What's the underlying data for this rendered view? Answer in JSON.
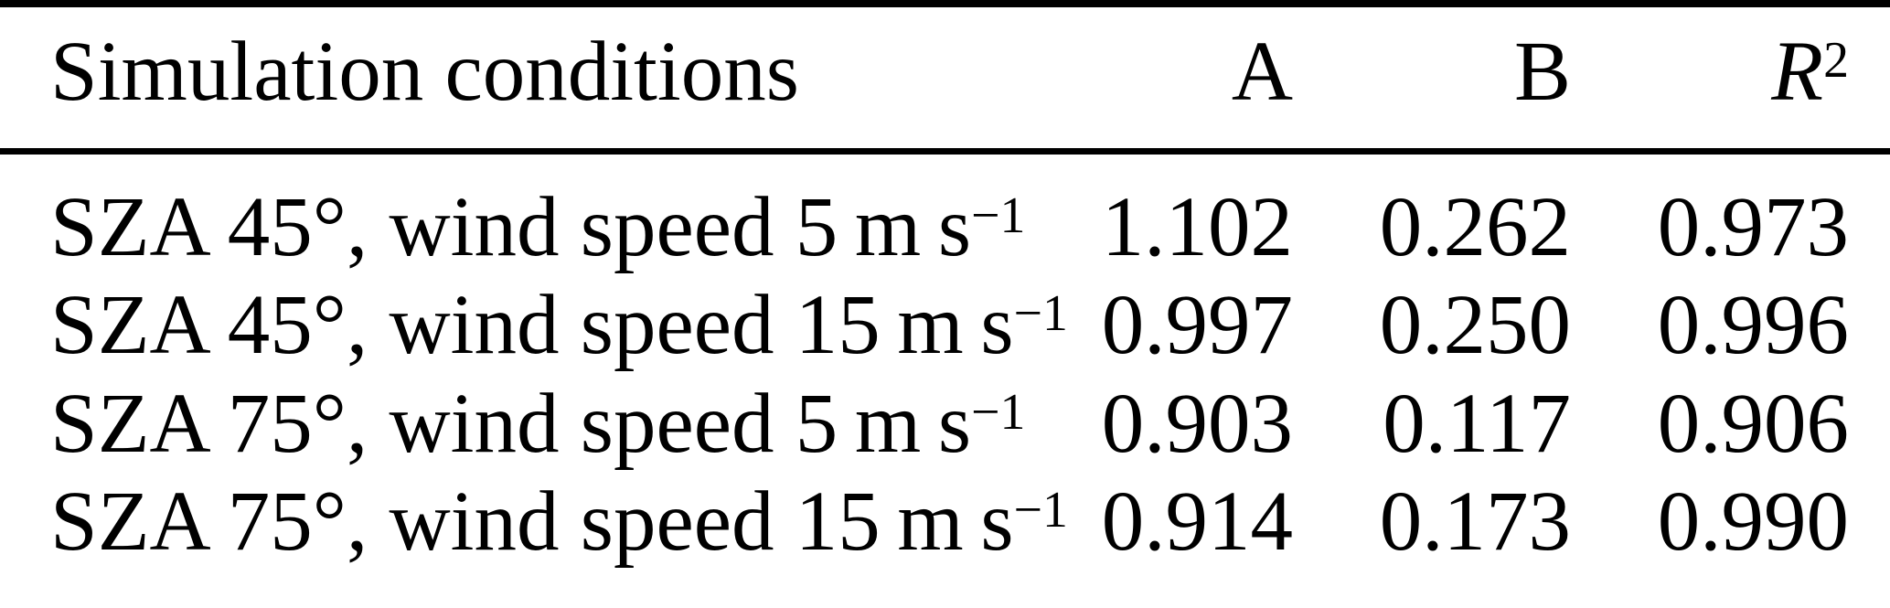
{
  "page": {
    "background": "#ffffff",
    "text_color": "#000000",
    "rule_color": "#000000"
  },
  "table": {
    "header": {
      "condition": "Simulation conditions",
      "col_a": "A",
      "col_b": "B",
      "col_r2_base": "R",
      "col_r2_sup": "2"
    },
    "rows": [
      {
        "condition_main": "SZA 45°, wind speed 5 m s",
        "condition_sup": "−1",
        "a": "1.102",
        "b": "0.262",
        "r2": "0.973"
      },
      {
        "condition_main": "SZA 45°, wind speed 15 m s",
        "condition_sup": "−1",
        "a": "0.997",
        "b": "0.250",
        "r2": "0.996"
      },
      {
        "condition_main": "SZA 75°, wind speed 5 m s",
        "condition_sup": "−1",
        "a": "0.903",
        "b": "0.117",
        "r2": "0.906"
      },
      {
        "condition_main": "SZA 75°, wind speed 15 m s",
        "condition_sup": "−1",
        "a": "0.914",
        "b": "0.173",
        "r2": "0.990"
      }
    ]
  },
  "chart_data": {
    "type": "table",
    "columns": [
      "Simulation conditions",
      "A",
      "B",
      "R^2"
    ],
    "rows": [
      [
        "SZA 45°, wind speed 5 m s^-1",
        1.102,
        0.262,
        0.973
      ],
      [
        "SZA 45°, wind speed 15 m s^-1",
        0.997,
        0.25,
        0.996
      ],
      [
        "SZA 75°, wind speed 5 m s^-1",
        0.903,
        0.117,
        0.906
      ],
      [
        "SZA 75°, wind speed 15 m s^-1",
        0.914,
        0.173,
        0.99
      ]
    ]
  }
}
